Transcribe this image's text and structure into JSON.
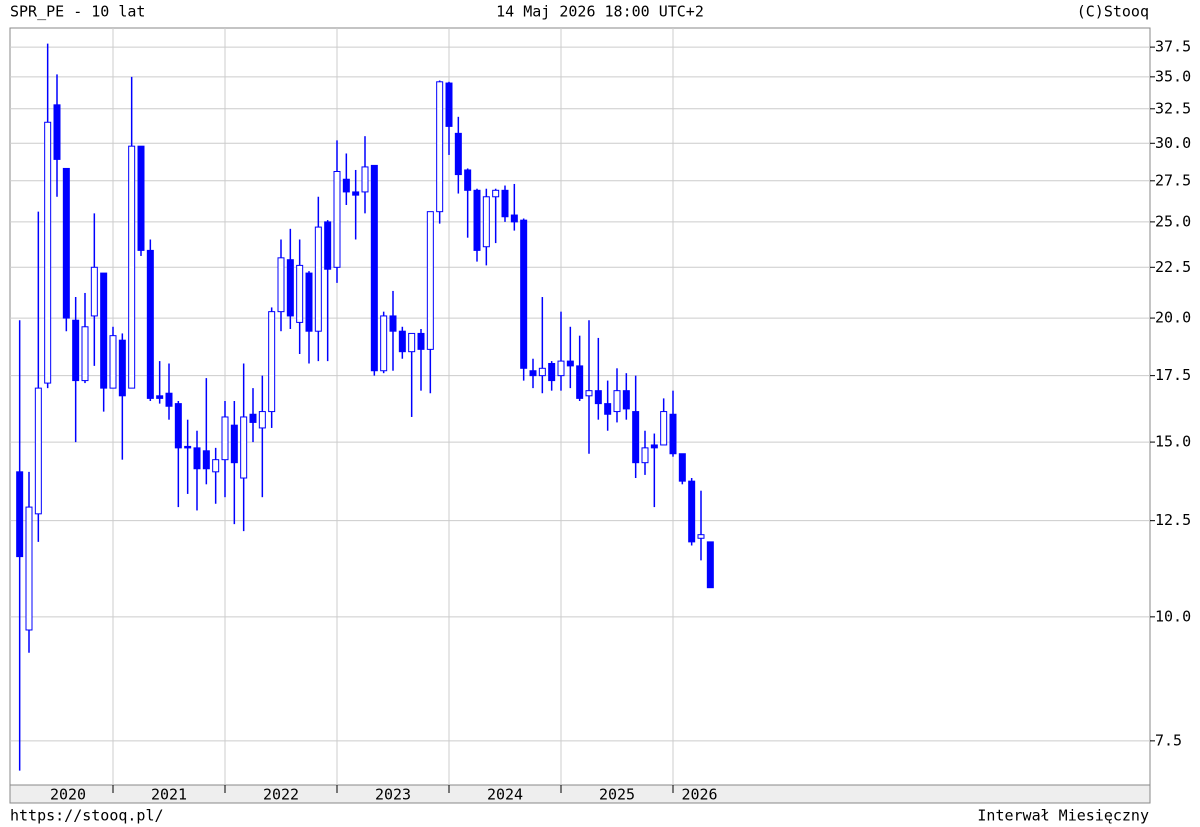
{
  "chart_data": {
    "type": "candlestick",
    "title": "SPR_PE - 10 lat",
    "date": "14 Maj 2026 18:00 UTC+2",
    "credit": "(C)Stooq",
    "url": "https://stooq.pl/",
    "interval": "Interwał Miesięczny",
    "years": [
      "2020",
      "2021",
      "2022",
      "2023",
      "2024",
      "2025",
      "2026"
    ],
    "open": [
      14.0,
      9.7,
      12.7,
      17.2,
      32.8,
      28.3,
      19.9,
      17.3,
      20.1,
      22.2,
      17.0,
      19.0,
      17.0,
      29.8,
      23.4,
      16.7,
      16.8,
      16.4,
      14.85,
      14.8,
      14.7,
      14.0,
      14.4,
      15.6,
      13.8,
      16.0,
      15.5,
      16.1,
      20.3,
      22.9,
      19.8,
      22.2,
      19.4,
      25.0,
      22.5,
      27.6,
      26.8,
      26.8,
      28.5,
      17.7,
      20.1,
      19.4,
      18.5,
      19.3,
      18.6,
      25.6,
      34.5,
      30.7,
      28.2,
      26.9,
      23.6,
      26.5,
      26.9,
      25.4,
      25.1,
      17.7,
      17.5,
      18.0,
      17.5,
      18.1,
      17.9,
      16.7,
      16.9,
      16.4,
      16.1,
      16.9,
      16.1,
      14.3,
      14.9,
      14.9,
      16.0,
      14.6,
      13.7,
      12.0,
      11.9
    ],
    "high": [
      19.9,
      14.0,
      25.6,
      37.8,
      35.2,
      28.3,
      21.0,
      21.2,
      25.5,
      22.2,
      19.6,
      19.3,
      35.0,
      29.8,
      24.0,
      18.1,
      18.0,
      16.5,
      15.8,
      15.4,
      17.4,
      14.8,
      16.5,
      16.5,
      18.0,
      17.0,
      17.5,
      20.5,
      24.0,
      24.6,
      24.0,
      22.3,
      26.5,
      25.1,
      30.2,
      29.3,
      28.2,
      30.5,
      28.5,
      20.3,
      21.3,
      19.6,
      19.3,
      19.5,
      25.6,
      34.7,
      34.6,
      31.9,
      28.3,
      27.0,
      27.0,
      27.0,
      27.2,
      27.3,
      25.2,
      18.2,
      21.0,
      18.1,
      20.3,
      19.6,
      19.2,
      19.9,
      19.1,
      17.3,
      17.8,
      17.6,
      17.5,
      15.4,
      15.3,
      16.6,
      16.9,
      14.6,
      13.8,
      13.4,
      11.9
    ],
    "low": [
      7.0,
      9.2,
      11.9,
      17.0,
      26.5,
      19.4,
      15.0,
      17.2,
      17.9,
      16.1,
      17.0,
      14.4,
      17.0,
      23.1,
      16.5,
      16.4,
      15.8,
      12.9,
      13.3,
      12.8,
      13.6,
      13.0,
      13.2,
      12.4,
      12.2,
      15.0,
      13.2,
      15.5,
      19.4,
      19.5,
      18.4,
      18.0,
      18.1,
      18.1,
      21.7,
      26.0,
      24.0,
      25.5,
      17.5,
      17.6,
      17.7,
      18.2,
      15.9,
      16.9,
      16.8,
      24.9,
      29.2,
      26.7,
      24.1,
      22.8,
      22.6,
      23.8,
      25.0,
      24.5,
      17.3,
      17.0,
      16.8,
      16.9,
      16.9,
      17.0,
      16.5,
      14.6,
      15.8,
      15.4,
      15.7,
      15.8,
      13.8,
      13.9,
      12.9,
      14.9,
      14.5,
      13.6,
      11.8,
      11.4,
      10.7
    ],
    "close": [
      11.5,
      12.9,
      17.0,
      31.5,
      28.9,
      20.0,
      17.3,
      19.6,
      22.5,
      17.0,
      19.2,
      16.7,
      29.8,
      23.4,
      16.6,
      16.6,
      16.3,
      14.8,
      14.8,
      14.1,
      14.1,
      14.4,
      15.9,
      14.3,
      15.9,
      15.7,
      16.1,
      20.3,
      23.0,
      20.1,
      22.6,
      19.4,
      24.7,
      22.4,
      28.1,
      26.8,
      26.6,
      28.4,
      17.7,
      20.1,
      19.4,
      18.5,
      19.3,
      18.6,
      25.6,
      34.6,
      31.2,
      27.9,
      26.9,
      23.4,
      26.5,
      26.9,
      25.3,
      25.0,
      17.8,
      17.5,
      17.8,
      17.3,
      18.1,
      17.9,
      16.6,
      16.9,
      16.4,
      16.0,
      16.9,
      16.2,
      14.3,
      14.8,
      14.8,
      16.1,
      14.6,
      13.7,
      11.9,
      12.1,
      10.7
    ],
    "ylim": [
      6.77,
      39.2
    ],
    "yticks": [
      7.5,
      {
        "value": 10,
        "label": "10.0"
      },
      12.5,
      {
        "value": 15,
        "label": "15.0"
      },
      17.5,
      {
        "value": 20,
        "label": "20.0"
      },
      22.5,
      {
        "value": 25,
        "label": "25.0"
      },
      27.5,
      {
        "value": 30,
        "label": "30.0"
      },
      32.5,
      {
        "value": 35,
        "label": "35.0"
      },
      37.5
    ],
    "log_scale": true,
    "grid": true,
    "up_color": "#ffffff",
    "down_color": "#0000ff",
    "line_color": "#0000ff"
  }
}
